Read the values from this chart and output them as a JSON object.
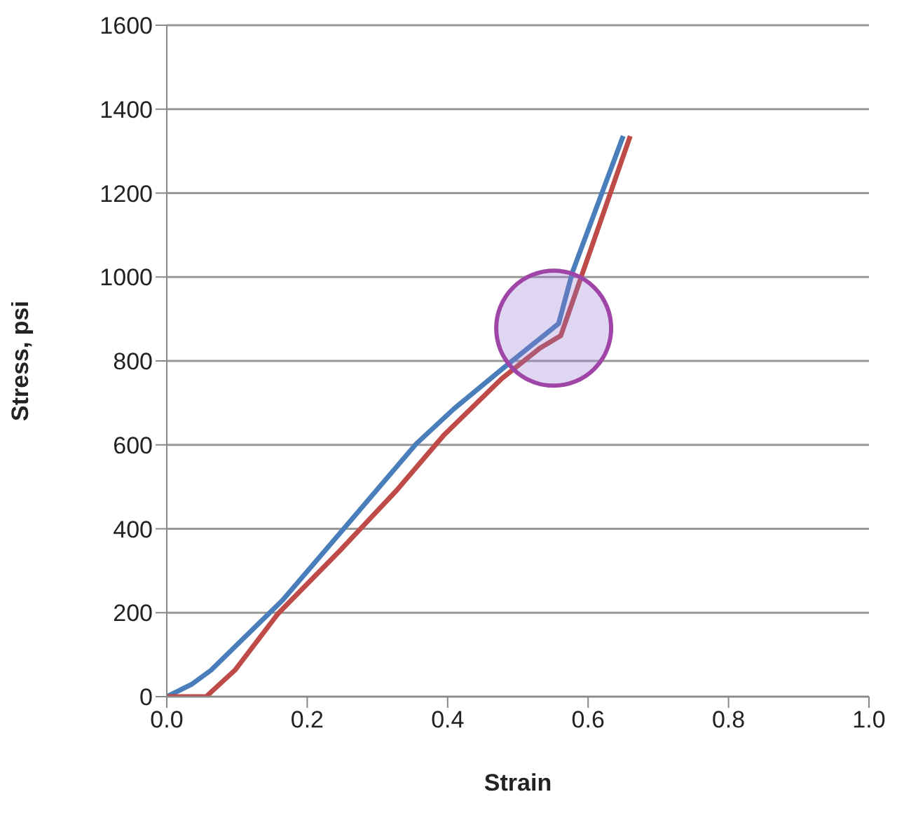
{
  "chart_data": {
    "type": "line",
    "xlabel": "Strain",
    "ylabel": "Stress, psi",
    "xlim": [
      0,
      1
    ],
    "xticks": [
      {
        "value": 0,
        "label": "0.0"
      },
      {
        "value": 0.2,
        "label": "0.2"
      },
      {
        "value": 0.4,
        "label": "0.4"
      },
      {
        "value": 0.6,
        "label": "0.6"
      },
      {
        "value": 0.8,
        "label": "0.8"
      },
      {
        "value": 1,
        "label": "1.0"
      }
    ],
    "ylim": [
      0,
      1600
    ],
    "yticks": [
      0,
      200,
      400,
      600,
      800,
      1000,
      1200,
      1400,
      1600
    ],
    "grid": "y",
    "marker": "none",
    "line_style": "solid",
    "series": [
      {
        "color": "#4a7ebb",
        "x": [
          0,
          0.036,
          0.063,
          0.165,
          0.253,
          0.355,
          0.409,
          0.477,
          0.558,
          0.578,
          0.65
        ],
        "values": [
          0,
          30,
          63,
          230,
          402,
          602,
          686,
          780,
          889,
          1013,
          1336
        ]
      },
      {
        "color": "#be4b48",
        "x": [
          0,
          0.056,
          0.097,
          0.158,
          0.246,
          0.327,
          0.395,
          0.477,
          0.531,
          0.561,
          0.66
        ],
        "values": [
          0,
          0,
          63,
          197,
          347,
          491,
          624,
          758,
          830,
          860,
          1336
        ]
      }
    ]
  }
}
